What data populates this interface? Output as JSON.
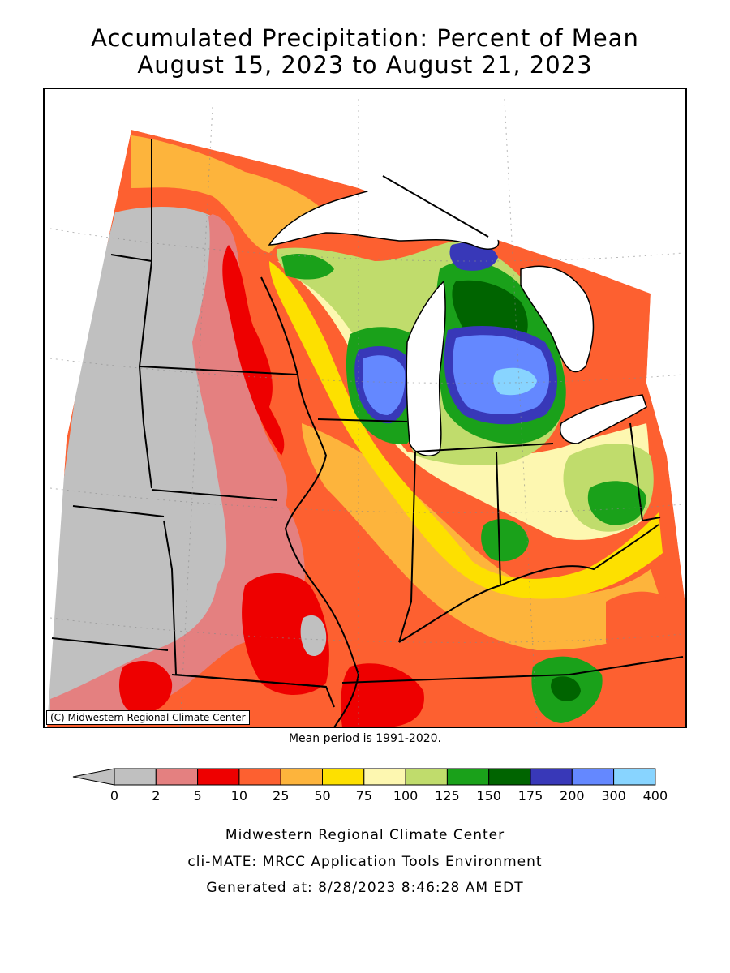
{
  "title": {
    "line1": "Accumulated Precipitation: Percent of Mean",
    "line2": "August 15, 2023 to August 21, 2023"
  },
  "map": {
    "copyright": "(C) Midwestern Regional Climate Center"
  },
  "mean_note": "Mean period is 1991-2020.",
  "legend": {
    "bins": [
      {
        "from": "0",
        "to": "2",
        "color": "#c0c0c0"
      },
      {
        "from": "2",
        "to": "5",
        "color": "#e48080"
      },
      {
        "from": "5",
        "to": "10",
        "color": "#ee0000"
      },
      {
        "from": "10",
        "to": "25",
        "color": "#fd6030"
      },
      {
        "from": "25",
        "to": "50",
        "color": "#fdb43c"
      },
      {
        "from": "50",
        "to": "75",
        "color": "#fde000"
      },
      {
        "from": "75",
        "to": "100",
        "color": "#fdf7b0"
      },
      {
        "from": "100",
        "to": "125",
        "color": "#c0dc6c"
      },
      {
        "from": "125",
        "to": "150",
        "color": "#1aa11a"
      },
      {
        "from": "150",
        "to": "175",
        "color": "#006400"
      },
      {
        "from": "175",
        "to": "200",
        "color": "#3838b8"
      },
      {
        "from": "200",
        "to": "300",
        "color": "#6488ff"
      },
      {
        "from": "300",
        "to": "400",
        "color": "#88d4ff"
      }
    ],
    "below_color": "#c0c0c0",
    "ticks": [
      "0",
      "2",
      "5",
      "10",
      "25",
      "50",
      "75",
      "100",
      "125",
      "150",
      "175",
      "200",
      "300",
      "400"
    ]
  },
  "footer": {
    "line1": "Midwestern Regional Climate Center",
    "line2": "cli-MATE: MRCC Application Tools Environment",
    "line3": "Generated at: 8/28/2023 8:46:28 AM EDT"
  }
}
